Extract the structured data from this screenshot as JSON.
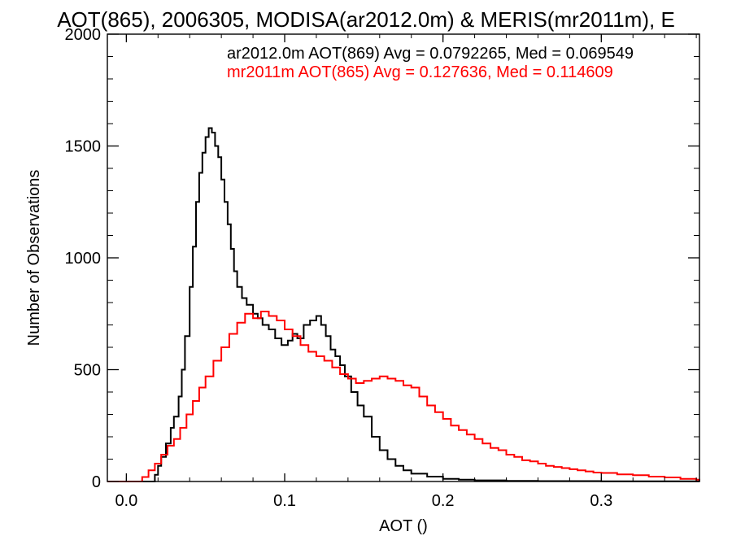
{
  "chart_data": {
    "type": "line",
    "title": "AOT(865), 2006305, MODISA(ar2012.0m) & MERIS(mr2011m), E",
    "xlabel": "AOT ()",
    "ylabel": "Number of Observations",
    "xlim": [
      -0.012,
      0.362
    ],
    "ylim": [
      0,
      2000
    ],
    "x_ticks": [
      0.0,
      0.1,
      0.2,
      0.3
    ],
    "x_tick_labels": [
      "0.0",
      "0.1",
      "0.2",
      "0.3"
    ],
    "y_ticks": [
      0,
      500,
      1000,
      1500,
      2000
    ],
    "y_tick_labels": [
      "0",
      "500",
      "1000",
      "1500",
      "2000"
    ],
    "grid": false,
    "legend_placement": "top-right",
    "legend": [
      {
        "text": "ar2012.0m AOT(869) Avg = 0.0792265, Med = 0.069549",
        "color": "#000000"
      },
      {
        "text": "mr2011m AOT(865) Avg = 0.127636, Med = 0.114609",
        "color": "#ff0000"
      }
    ],
    "series": [
      {
        "color": "#000000",
        "points": [
          [
            -0.012,
            0
          ],
          [
            0.015,
            0
          ],
          [
            0.018,
            30
          ],
          [
            0.02,
            70
          ],
          [
            0.022,
            110
          ],
          [
            0.025,
            170
          ],
          [
            0.028,
            240
          ],
          [
            0.03,
            290
          ],
          [
            0.033,
            380
          ],
          [
            0.035,
            500
          ],
          [
            0.037,
            650
          ],
          [
            0.04,
            870
          ],
          [
            0.042,
            1050
          ],
          [
            0.044,
            1250
          ],
          [
            0.046,
            1380
          ],
          [
            0.048,
            1470
          ],
          [
            0.05,
            1540
          ],
          [
            0.052,
            1580
          ],
          [
            0.054,
            1560
          ],
          [
            0.056,
            1500
          ],
          [
            0.058,
            1450
          ],
          [
            0.06,
            1350
          ],
          [
            0.062,
            1250
          ],
          [
            0.064,
            1150
          ],
          [
            0.066,
            1040
          ],
          [
            0.068,
            940
          ],
          [
            0.07,
            870
          ],
          [
            0.073,
            820
          ],
          [
            0.076,
            790
          ],
          [
            0.08,
            750
          ],
          [
            0.083,
            730
          ],
          [
            0.086,
            700
          ],
          [
            0.09,
            680
          ],
          [
            0.094,
            640
          ],
          [
            0.098,
            610
          ],
          [
            0.102,
            630
          ],
          [
            0.105,
            660
          ],
          [
            0.108,
            640
          ],
          [
            0.112,
            700
          ],
          [
            0.116,
            720
          ],
          [
            0.12,
            740
          ],
          [
            0.123,
            700
          ],
          [
            0.126,
            650
          ],
          [
            0.129,
            590
          ],
          [
            0.132,
            560
          ],
          [
            0.135,
            520
          ],
          [
            0.138,
            470
          ],
          [
            0.142,
            400
          ],
          [
            0.146,
            340
          ],
          [
            0.15,
            290
          ],
          [
            0.155,
            200
          ],
          [
            0.16,
            140
          ],
          [
            0.165,
            100
          ],
          [
            0.17,
            70
          ],
          [
            0.175,
            50
          ],
          [
            0.18,
            35
          ],
          [
            0.19,
            22
          ],
          [
            0.2,
            12
          ],
          [
            0.21,
            8
          ],
          [
            0.22,
            5
          ],
          [
            0.24,
            3
          ],
          [
            0.26,
            2
          ],
          [
            0.3,
            1
          ],
          [
            0.362,
            0
          ]
        ]
      },
      {
        "color": "#ff0000",
        "points": [
          [
            -0.012,
            0
          ],
          [
            0.008,
            0
          ],
          [
            0.01,
            20
          ],
          [
            0.014,
            50
          ],
          [
            0.018,
            80
          ],
          [
            0.022,
            120
          ],
          [
            0.026,
            160
          ],
          [
            0.03,
            190
          ],
          [
            0.034,
            240
          ],
          [
            0.038,
            300
          ],
          [
            0.042,
            360
          ],
          [
            0.046,
            420
          ],
          [
            0.05,
            470
          ],
          [
            0.055,
            540
          ],
          [
            0.06,
            600
          ],
          [
            0.065,
            660
          ],
          [
            0.07,
            710
          ],
          [
            0.075,
            750
          ],
          [
            0.08,
            730
          ],
          [
            0.085,
            760
          ],
          [
            0.09,
            740
          ],
          [
            0.095,
            720
          ],
          [
            0.1,
            680
          ],
          [
            0.105,
            650
          ],
          [
            0.11,
            610
          ],
          [
            0.115,
            580
          ],
          [
            0.12,
            560
          ],
          [
            0.125,
            540
          ],
          [
            0.13,
            510
          ],
          [
            0.135,
            480
          ],
          [
            0.14,
            460
          ],
          [
            0.145,
            440
          ],
          [
            0.15,
            450
          ],
          [
            0.155,
            460
          ],
          [
            0.16,
            470
          ],
          [
            0.165,
            460
          ],
          [
            0.17,
            450
          ],
          [
            0.175,
            430
          ],
          [
            0.18,
            420
          ],
          [
            0.185,
            380
          ],
          [
            0.19,
            340
          ],
          [
            0.195,
            310
          ],
          [
            0.2,
            280
          ],
          [
            0.205,
            250
          ],
          [
            0.21,
            230
          ],
          [
            0.215,
            210
          ],
          [
            0.22,
            190
          ],
          [
            0.225,
            170
          ],
          [
            0.23,
            150
          ],
          [
            0.235,
            140
          ],
          [
            0.24,
            120
          ],
          [
            0.245,
            110
          ],
          [
            0.25,
            95
          ],
          [
            0.255,
            90
          ],
          [
            0.26,
            80
          ],
          [
            0.265,
            70
          ],
          [
            0.27,
            65
          ],
          [
            0.275,
            60
          ],
          [
            0.28,
            55
          ],
          [
            0.285,
            50
          ],
          [
            0.29,
            45
          ],
          [
            0.295,
            40
          ],
          [
            0.3,
            38
          ],
          [
            0.31,
            32
          ],
          [
            0.32,
            28
          ],
          [
            0.33,
            22
          ],
          [
            0.34,
            18
          ],
          [
            0.35,
            12
          ],
          [
            0.36,
            8
          ],
          [
            0.362,
            6
          ]
        ]
      }
    ]
  }
}
